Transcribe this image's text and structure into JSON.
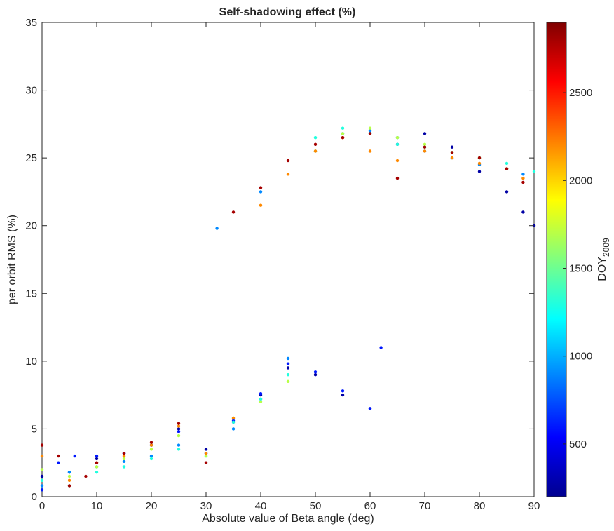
{
  "chart_data": {
    "type": "scatter",
    "title": "Self-shadowing effect (%)",
    "xlabel": "Absolute value of Beta angle (deg)",
    "ylabel": "per orbit RMS (%)",
    "xlim": [
      0,
      90
    ],
    "ylim": [
      0,
      35
    ],
    "x_ticks": [
      "0",
      "10",
      "20",
      "30",
      "40",
      "50",
      "60",
      "70",
      "80",
      "90"
    ],
    "y_ticks": [
      "0",
      "5",
      "10",
      "15",
      "20",
      "25",
      "30",
      "35"
    ],
    "grid": false,
    "colorbar": {
      "label_main": "DOY",
      "label_sub": "2009",
      "range": [
        200,
        2900
      ],
      "ticks": [
        "500",
        "1000",
        "1500",
        "2000",
        "2500"
      ],
      "tick_values": [
        500,
        1000,
        1500,
        2000,
        2500
      ],
      "colormap": "jet"
    },
    "series": [
      {
        "doy": 300,
        "x": [
          0,
          5,
          10,
          15,
          20,
          25,
          30,
          35,
          40,
          45,
          50,
          55,
          60,
          65,
          70,
          75,
          80,
          85,
          88,
          90
        ],
        "y": [
          1.5,
          1.8,
          2.8,
          3.2,
          3.8,
          5.0,
          3.5,
          5.5,
          7.5,
          9.5,
          9.0,
          7.5,
          6.5,
          26.0,
          26.8,
          25.8,
          24.0,
          22.5,
          21.0,
          20.0
        ]
      },
      {
        "doy": 600,
        "x": [
          0,
          3,
          6,
          10,
          15,
          20,
          25,
          30,
          35,
          40,
          45,
          50,
          55,
          60,
          62
        ],
        "y": [
          0.5,
          2.5,
          3.0,
          3.0,
          3.2,
          3.8,
          4.8,
          3.2,
          5.6,
          7.6,
          9.8,
          9.2,
          7.8,
          6.5,
          11.0
        ]
      },
      {
        "doy": 900,
        "x": [
          0,
          5,
          10,
          15,
          20,
          25,
          30,
          35,
          40,
          45,
          32,
          40,
          50,
          55,
          60,
          65,
          70,
          75,
          80,
          85,
          88
        ],
        "y": [
          0.8,
          1.8,
          2.2,
          2.6,
          3.0,
          3.8,
          3.2,
          5.0,
          7.2,
          10.2,
          19.8,
          22.5,
          25.5,
          26.8,
          27.0,
          26.5,
          25.5,
          25.0,
          24.5,
          24.2,
          23.8
        ]
      },
      {
        "doy": 1300,
        "x": [
          0,
          5,
          10,
          15,
          20,
          25,
          30,
          35,
          40,
          45,
          50,
          55,
          60,
          65,
          70,
          75,
          80,
          85,
          90
        ],
        "y": [
          1.2,
          0.8,
          1.8,
          2.2,
          2.8,
          3.5,
          3.0,
          5.5,
          7.2,
          9.0,
          26.5,
          27.2,
          26.8,
          26.0,
          25.8,
          25.4,
          25.0,
          24.6,
          24.0
        ]
      },
      {
        "doy": 1700,
        "x": [
          0,
          5,
          10,
          15,
          20,
          25,
          30,
          35,
          40,
          45,
          50,
          55,
          60,
          65,
          70,
          75,
          80,
          85
        ],
        "y": [
          2.0,
          1.5,
          2.2,
          2.8,
          3.5,
          4.5,
          3.0,
          5.8,
          7.0,
          8.5,
          25.5,
          26.8,
          27.2,
          26.5,
          26.0,
          25.4,
          25.0,
          24.2
        ]
      },
      {
        "doy": 2200,
        "x": [
          0,
          5,
          10,
          15,
          20,
          25,
          30,
          35,
          40,
          45,
          50,
          55,
          60,
          65,
          70,
          75,
          80,
          85,
          88
        ],
        "y": [
          3.0,
          1.2,
          2.5,
          3.0,
          3.8,
          5.2,
          3.2,
          5.8,
          21.5,
          23.8,
          25.5,
          26.5,
          25.5,
          24.8,
          25.5,
          25.0,
          24.6,
          24.2,
          23.5
        ]
      },
      {
        "doy": 2800,
        "x": [
          0,
          3,
          5,
          8,
          10,
          15,
          20,
          25,
          30,
          35,
          40,
          45,
          50,
          55,
          60,
          65,
          70,
          75,
          80,
          85,
          88
        ],
        "y": [
          3.8,
          3.0,
          0.8,
          1.5,
          2.5,
          3.2,
          4.0,
          5.4,
          2.5,
          21.0,
          22.8,
          24.8,
          26.0,
          26.5,
          26.8,
          23.5,
          25.8,
          25.4,
          25.0,
          24.2,
          23.2
        ]
      }
    ]
  }
}
